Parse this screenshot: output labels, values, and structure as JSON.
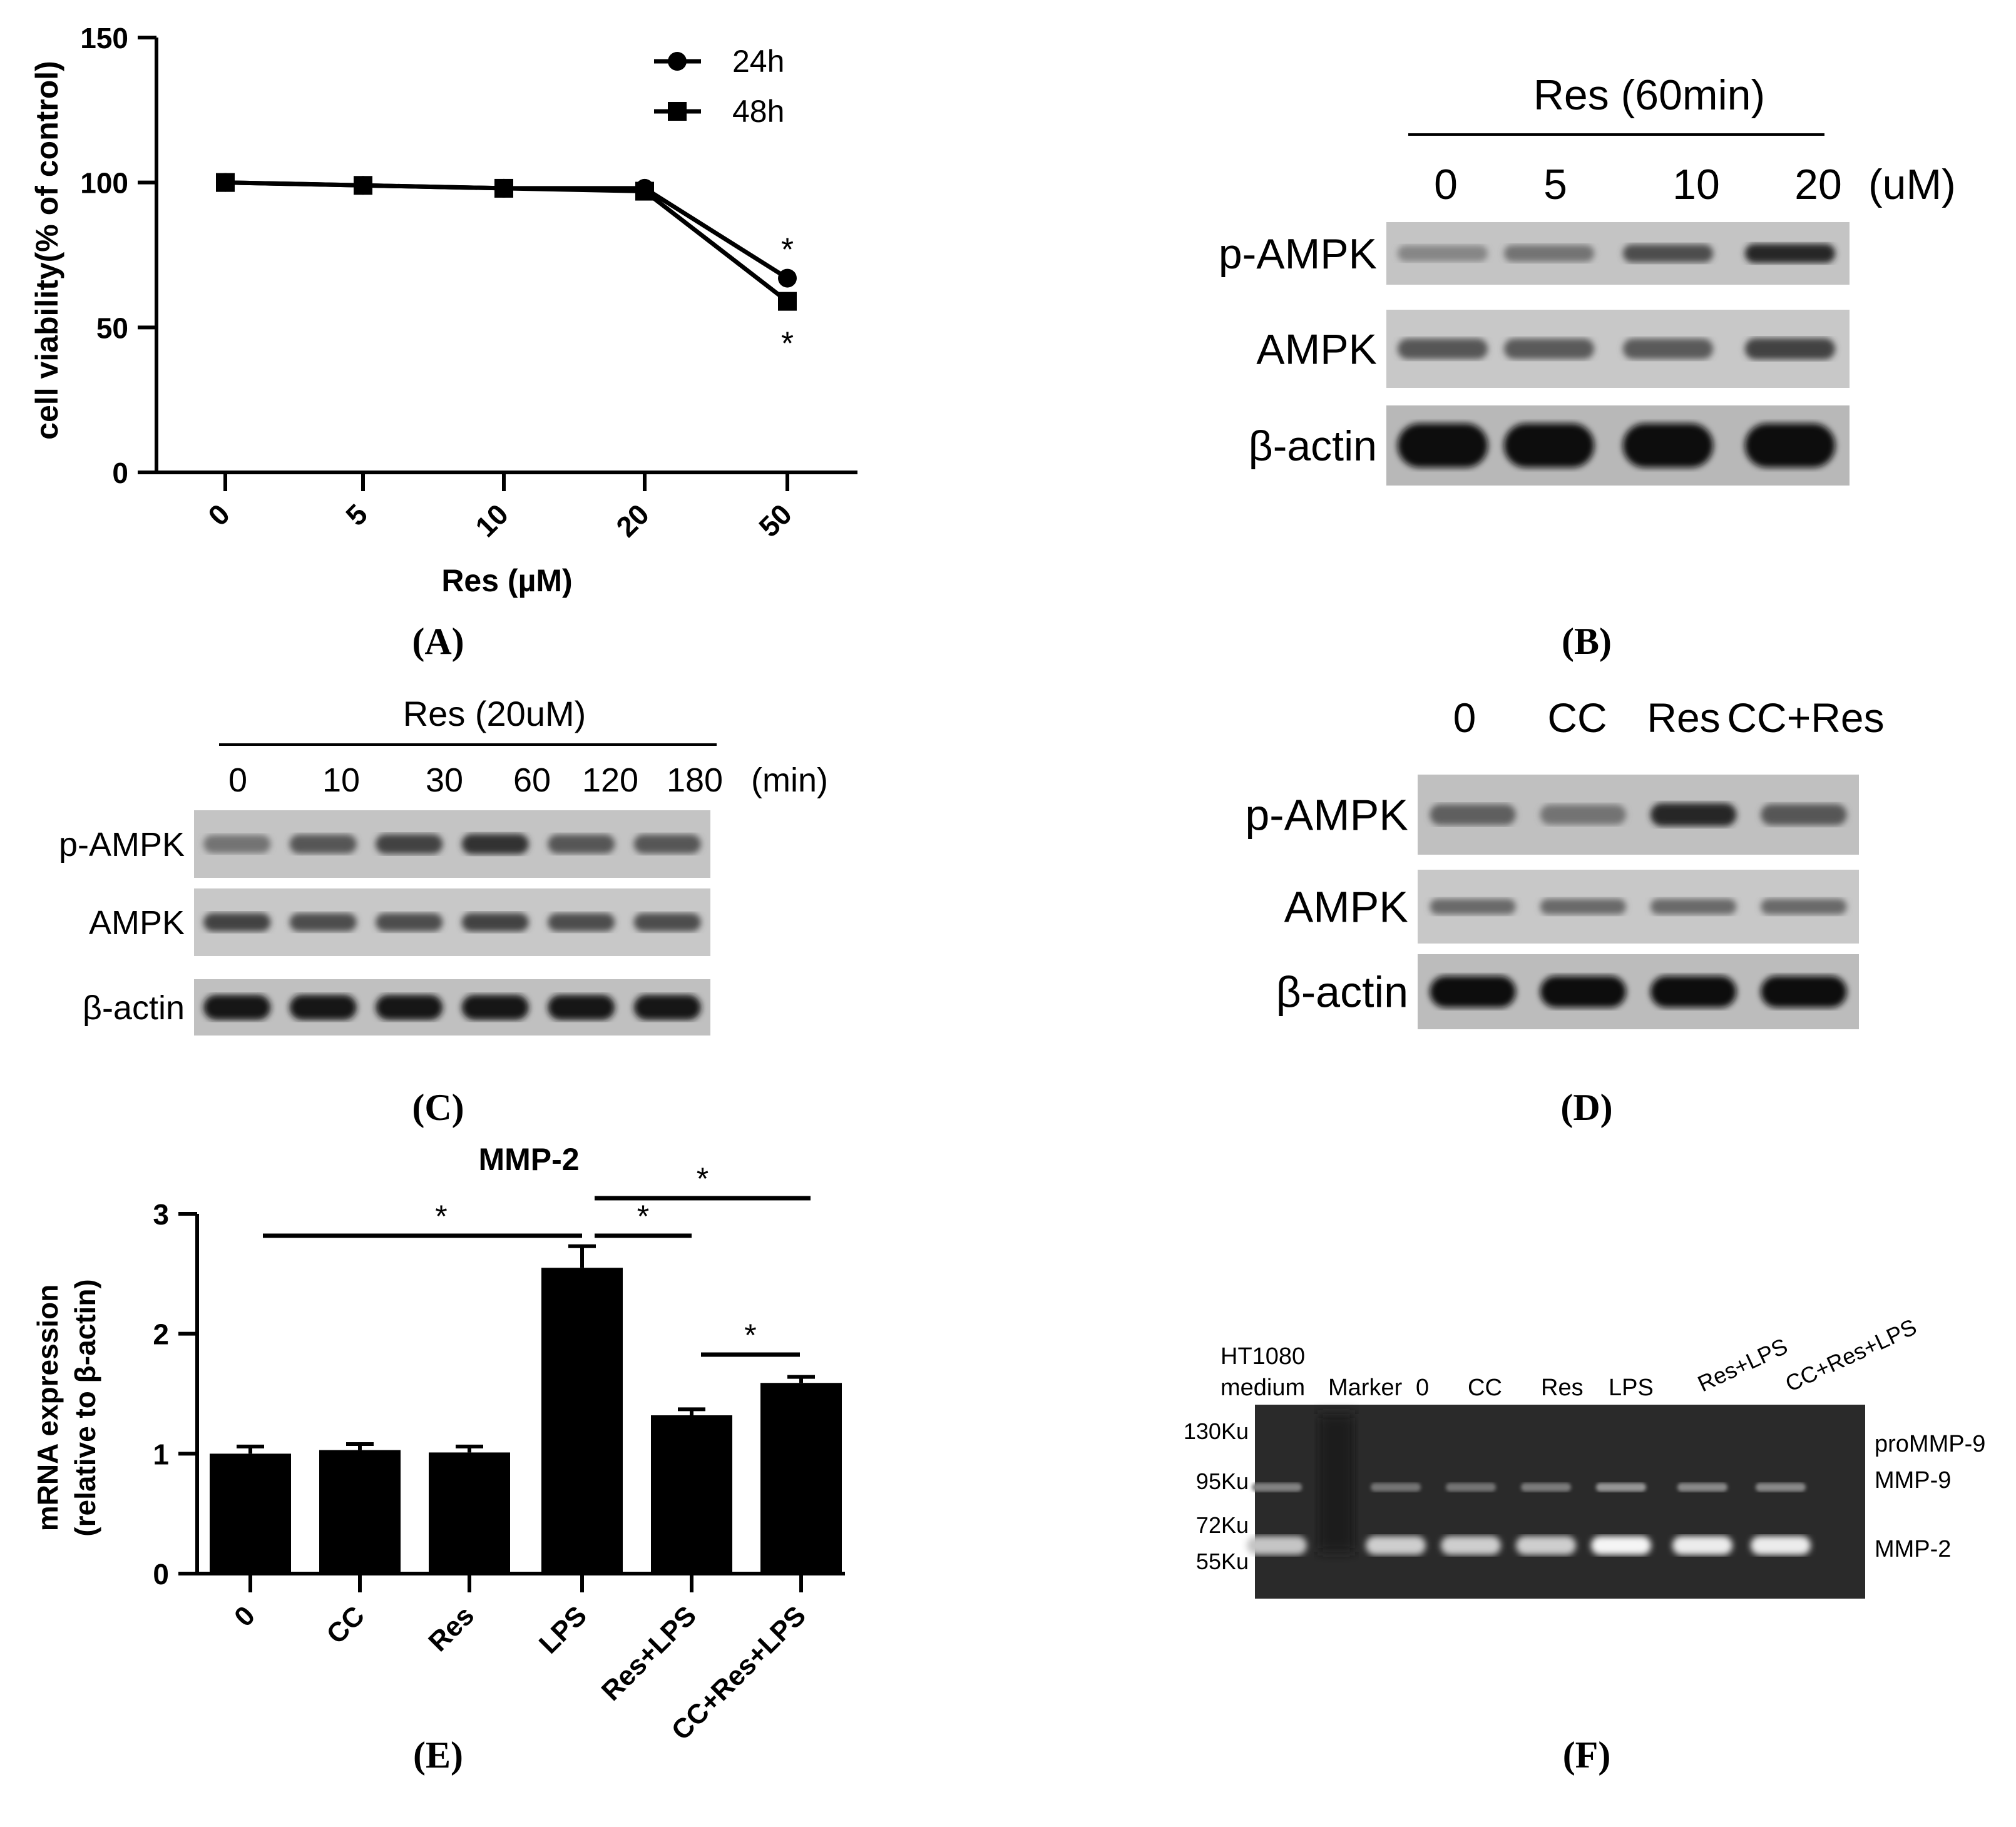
{
  "panels": {
    "A": {
      "panel_label": "(A)",
      "chart_data": {
        "type": "line",
        "ylabel": "cell viability(% of control)",
        "xlabel": "Res (µM)",
        "categories": [
          "0",
          "5",
          "10",
          "20",
          "50"
        ],
        "ylim": [
          0,
          150
        ],
        "yticks": [
          "0",
          "50",
          "100",
          "150"
        ],
        "series": [
          {
            "name": "24h",
            "marker": "circle",
            "values": [
              100,
              99,
              98,
              98,
              67
            ]
          },
          {
            "name": "48h",
            "marker": "square",
            "values": [
              100,
              99,
              98,
              97,
              59
            ]
          }
        ],
        "annotations": [
          "*",
          "*"
        ],
        "grid": false,
        "legend": "top-right"
      }
    },
    "B": {
      "panel_label": "(B)",
      "title": "Res (60min)",
      "lanes": [
        "0",
        "5",
        "10",
        "20"
      ],
      "unit": "(uM)",
      "rows": [
        "p-AMPK",
        "AMPK",
        "β-actin"
      ],
      "intensity": [
        [
          0.35,
          0.45,
          0.65,
          0.85
        ],
        [
          0.6,
          0.58,
          0.58,
          0.7
        ],
        [
          1.0,
          1.0,
          1.0,
          1.0
        ]
      ]
    },
    "C": {
      "panel_label": "(C)",
      "title": "Res (20uM)",
      "lanes": [
        "0",
        "10",
        "30",
        "60",
        "120",
        "180"
      ],
      "unit": "(min)",
      "rows": [
        "p-AMPK",
        "AMPK",
        "β-actin"
      ],
      "intensity": [
        [
          0.45,
          0.6,
          0.7,
          0.8,
          0.6,
          0.6
        ],
        [
          0.7,
          0.65,
          0.65,
          0.7,
          0.65,
          0.65
        ],
        [
          0.95,
          0.95,
          0.95,
          0.95,
          0.95,
          0.95
        ]
      ]
    },
    "D": {
      "panel_label": "(D)",
      "lanes": [
        "0",
        "CC",
        "Res",
        "CC+Res"
      ],
      "rows": [
        "p-AMPK",
        "AMPK",
        "β-actin"
      ],
      "intensity": [
        [
          0.55,
          0.45,
          0.85,
          0.6
        ],
        [
          0.5,
          0.5,
          0.5,
          0.5
        ],
        [
          1.0,
          1.0,
          1.0,
          1.0
        ]
      ]
    },
    "E": {
      "panel_label": "(E)",
      "chart_data": {
        "type": "bar",
        "title": "MMP-2",
        "ylabel": "mRNA expression\n(relative to β-actin)",
        "categories": [
          "0",
          "CC",
          "Res",
          "LPS",
          "Res+LPS",
          "CC+Res+LPS"
        ],
        "values": [
          1.0,
          1.03,
          1.01,
          2.55,
          1.32,
          1.59
        ],
        "errors": [
          0.06,
          0.05,
          0.05,
          0.18,
          0.05,
          0.05
        ],
        "ylim": [
          0,
          3
        ],
        "yticks": [
          "0",
          "1",
          "2",
          "3"
        ],
        "significance": [
          {
            "from": 0,
            "to": 3,
            "label": "*"
          },
          {
            "from": 3,
            "to": 4,
            "label": "*"
          },
          {
            "from": 3,
            "to": 5,
            "label": "*"
          },
          {
            "from": 4,
            "to": 5,
            "label": "*"
          }
        ],
        "grid": false
      }
    },
    "F": {
      "panel_label": "(F)",
      "lanes": [
        "HT1080\nmedium",
        "Marker",
        "0",
        "CC",
        "Res",
        "LPS",
        "Res+LPS",
        "CC+Res+LPS"
      ],
      "left_labels": [
        "130Ku",
        "95Ku",
        "72Ku",
        "55Ku"
      ],
      "right_labels": [
        "proMMP-9",
        "MMP-9",
        "MMP-2"
      ],
      "mmp9_intensity": [
        0.5,
        0,
        0.4,
        0.4,
        0.45,
        0.65,
        0.55,
        0.55
      ],
      "mmp2_intensity": [
        0.7,
        0,
        0.75,
        0.75,
        0.75,
        0.95,
        0.9,
        0.9
      ]
    }
  }
}
